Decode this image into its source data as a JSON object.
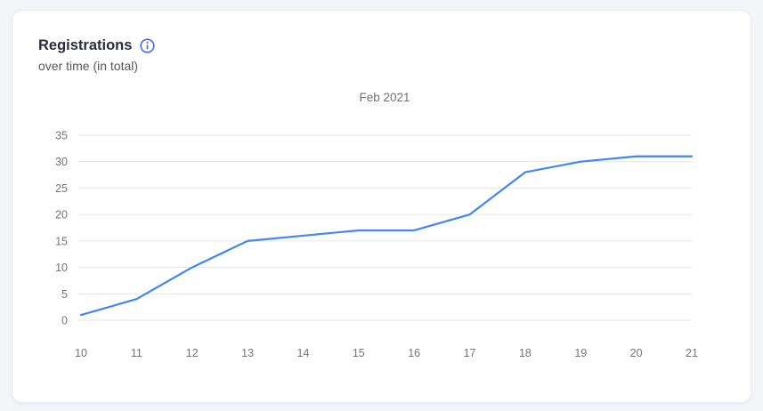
{
  "card": {
    "title": "Registrations",
    "subtitle": "over time (in total)"
  },
  "chart_data": {
    "type": "line",
    "title": "Feb 2021",
    "x": [
      10,
      11,
      12,
      13,
      14,
      15,
      16,
      17,
      18,
      19,
      20,
      21
    ],
    "series": [
      {
        "name": "Registrations",
        "values": [
          1,
          4,
          10,
          15,
          16,
          17,
          17,
          20,
          28,
          30,
          31,
          31
        ]
      }
    ],
    "xlabel": "",
    "ylabel": "",
    "ylim": [
      0,
      35
    ],
    "y_ticks": [
      0,
      5,
      10,
      15,
      20,
      25,
      30,
      35
    ],
    "grid": "horizontal",
    "legend": "none",
    "line_color": "#4285f4",
    "grid_color": "#e6e6e6",
    "tick_label_color": "#757575",
    "title_color": "#6f7276"
  },
  "colors": {
    "page_bg": "#f4f5f9",
    "card_bg": "#ffffff",
    "card_border": "#e9ebf2",
    "title_text": "#2a2e40",
    "subtitle_text": "#55585f",
    "info_icon": "#4263eb"
  }
}
